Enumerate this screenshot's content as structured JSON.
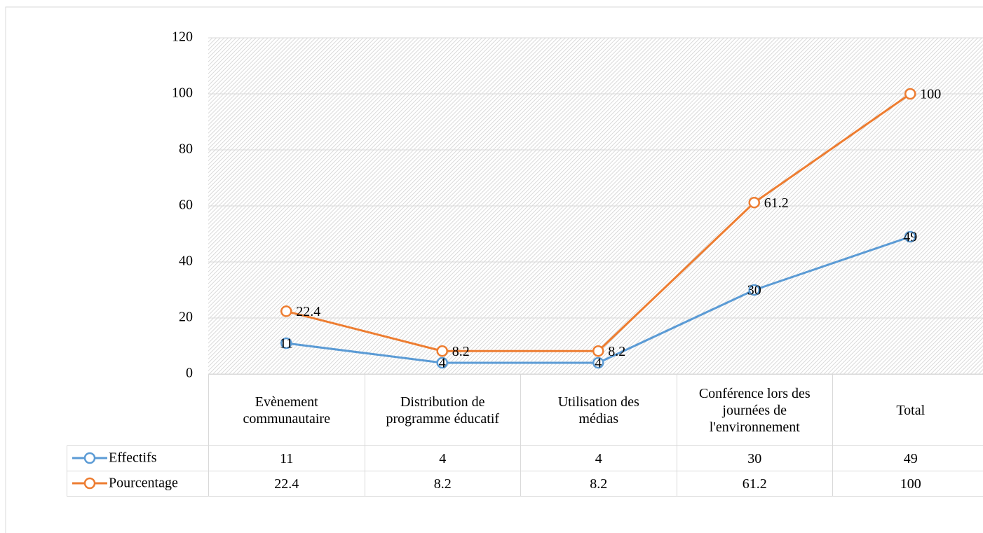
{
  "chart_data": {
    "type": "line",
    "categories": [
      "Evènement communautaire",
      "Distribution de programme éducatif",
      "Utilisation des médias",
      "Conférence lors des journées de l'environnement",
      "Total"
    ],
    "series": [
      {
        "name": "Effectifs",
        "color": "#5b9bd5",
        "values": [
          11,
          4,
          4,
          30,
          49
        ]
      },
      {
        "name": "Pourcentage",
        "color": "#ed7d31",
        "values": [
          22.4,
          8.2,
          8.2,
          61.2,
          100
        ]
      }
    ],
    "ylim": [
      0,
      120
    ],
    "yticks": [
      0,
      20,
      40,
      60,
      80,
      100,
      120
    ],
    "grid": true,
    "data_table": true
  }
}
